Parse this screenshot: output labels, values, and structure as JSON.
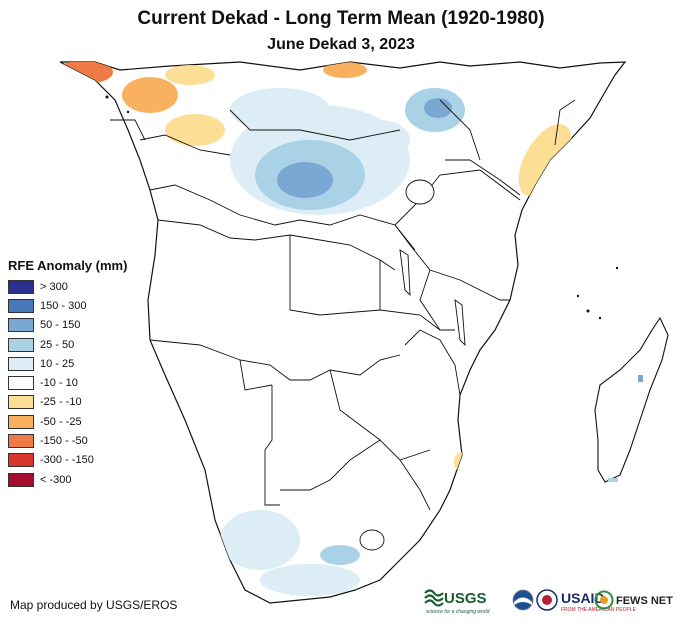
{
  "header": {
    "title": "Current Dekad - Long Term Mean (1920-1980)",
    "subtitle": "June Dekad 3, 2023"
  },
  "legend": {
    "title": "RFE Anomaly (mm)",
    "items": [
      {
        "label": "> 300",
        "color": "#2b2f8f"
      },
      {
        "label": "150 - 300",
        "color": "#4a78bb"
      },
      {
        "label": "50 - 150",
        "color": "#7aa8d2"
      },
      {
        "label": "25 - 50",
        "color": "#a9d2e6"
      },
      {
        "label": "10 - 25",
        "color": "#dcedf6"
      },
      {
        "label": "-10 - 10",
        "color": "#ffffff"
      },
      {
        "label": "-25 - -10",
        "color": "#fcdf95"
      },
      {
        "label": "-50 - -25",
        "color": "#f9b15f"
      },
      {
        "label": "-150 - -50",
        "color": "#f07a45"
      },
      {
        "label": "-300 - -150",
        "color": "#d9352a"
      },
      {
        "label": "< -300",
        "color": "#a40d2e"
      }
    ]
  },
  "footer": {
    "credit": "Map produced by USGS/EROS",
    "logos": {
      "usgs": "USGS",
      "usgs_tagline": "science for a changing world",
      "usaid": "USAID",
      "usaid_tagline": "FROM THE AMERICAN PEOPLE",
      "fews": "FEWS NET"
    }
  }
}
